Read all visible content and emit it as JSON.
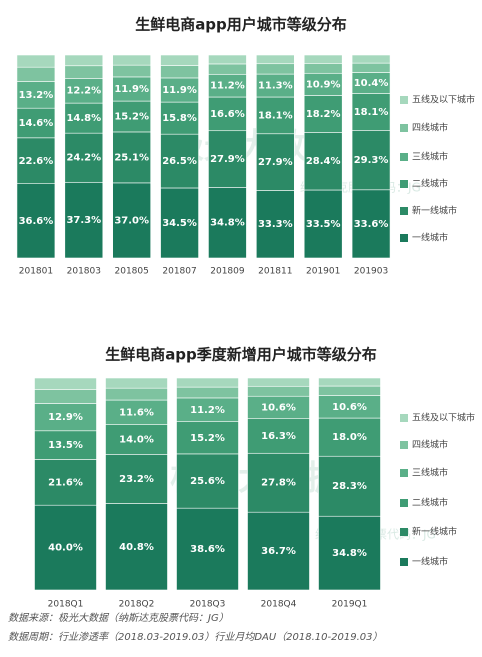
{
  "chart_data": [
    {
      "type": "bar",
      "stacked": true,
      "title": "生鲜电商app用户城市等级分布",
      "categories": [
        "201801",
        "201803",
        "201805",
        "201807",
        "201809",
        "201811",
        "201901",
        "201903"
      ],
      "legend": "right",
      "series": [
        {
          "name": "一线城市",
          "color": "#1b7a5c",
          "values": [
            36.6,
            37.3,
            37.0,
            34.5,
            34.8,
            33.3,
            33.5,
            33.6
          ],
          "value_labels": [
            "36.6%",
            "37.3%",
            "37.0%",
            "34.5%",
            "34.8%",
            "33.3%",
            "33.5%",
            "33.6%"
          ]
        },
        {
          "name": "新一线城市",
          "color": "#2c8a66",
          "values": [
            22.6,
            24.2,
            25.1,
            26.5,
            27.9,
            27.9,
            28.4,
            29.3
          ],
          "value_labels": [
            "22.6%",
            "24.2%",
            "25.1%",
            "26.5%",
            "27.9%",
            "27.9%",
            "28.4%",
            "29.3%"
          ]
        },
        {
          "name": "二线城市",
          "color": "#3f9c74",
          "values": [
            14.6,
            14.8,
            15.2,
            15.8,
            16.6,
            18.1,
            18.2,
            18.1
          ],
          "value_labels": [
            "14.6%",
            "14.8%",
            "15.2%",
            "15.8%",
            "16.6%",
            "18.1%",
            "18.2%",
            "18.1%"
          ]
        },
        {
          "name": "三线城市",
          "color": "#5aaf88",
          "values": [
            13.2,
            12.2,
            11.9,
            11.9,
            11.2,
            11.3,
            10.9,
            10.4
          ],
          "value_labels": [
            "13.2%",
            "12.2%",
            "11.9%",
            "11.9%",
            "11.2%",
            "11.3%",
            "10.9%",
            "10.4%"
          ]
        },
        {
          "name": "四线城市",
          "color": "#7ec3a0",
          "values": [
            7.0,
            6.2,
            5.8,
            6.1,
            5.1,
            5.1,
            4.9,
            4.6
          ],
          "value_labels": [
            null,
            null,
            null,
            null,
            null,
            null,
            null,
            null
          ]
        },
        {
          "name": "五线及以下城市",
          "color": "#a6d8bd",
          "values": [
            6.0,
            5.3,
            5.0,
            5.2,
            4.4,
            4.3,
            4.1,
            4.0
          ],
          "value_labels": [
            null,
            null,
            null,
            null,
            null,
            null,
            null,
            null
          ]
        }
      ]
    },
    {
      "type": "bar",
      "stacked": true,
      "title": "生鲜电商app季度新增用户城市等级分布",
      "categories": [
        "2018Q1",
        "2018Q2",
        "2018Q3",
        "2018Q4",
        "2019Q1"
      ],
      "legend": "right",
      "series": [
        {
          "name": "一线城市",
          "color": "#1b7a5c",
          "values": [
            40.0,
            40.8,
            38.6,
            36.7,
            34.8
          ],
          "value_labels": [
            "40.0%",
            "40.8%",
            "38.6%",
            "36.7%",
            "34.8%"
          ]
        },
        {
          "name": "新一线城市",
          "color": "#2c8a66",
          "values": [
            21.6,
            23.2,
            25.6,
            27.8,
            28.3
          ],
          "value_labels": [
            "21.6%",
            "23.2%",
            "25.6%",
            "27.8%",
            "28.3%"
          ]
        },
        {
          "name": "二线城市",
          "color": "#3f9c74",
          "values": [
            13.5,
            14.0,
            15.2,
            16.3,
            18.0
          ],
          "value_labels": [
            "13.5%",
            "14.0%",
            "15.2%",
            "16.3%",
            "18.0%"
          ]
        },
        {
          "name": "三线城市",
          "color": "#5aaf88",
          "values": [
            12.9,
            11.6,
            11.2,
            10.6,
            10.6
          ],
          "value_labels": [
            "12.9%",
            "11.6%",
            "11.2%",
            "10.6%",
            "10.6%"
          ]
        },
        {
          "name": "四线城市",
          "color": "#7ec3a0",
          "values": [
            6.5,
            5.6,
            5.1,
            4.7,
            4.5
          ],
          "value_labels": [
            null,
            null,
            null,
            null,
            null
          ]
        },
        {
          "name": "五线及以下城市",
          "color": "#a6d8bd",
          "values": [
            5.5,
            4.8,
            4.3,
            3.9,
            3.8
          ],
          "value_labels": [
            null,
            null,
            null,
            null,
            null
          ]
        }
      ]
    }
  ],
  "watermark": {
    "brand": "极光大数据",
    "code": "纳斯达克股票代码：JG"
  },
  "footer": {
    "source": "数据来源：极光大数据（纳斯达克股票代码：JG）",
    "period": "数据周期：行业渗透率（2018.03-2019.03）行业月均DAU（2018.10-2019.03）"
  }
}
